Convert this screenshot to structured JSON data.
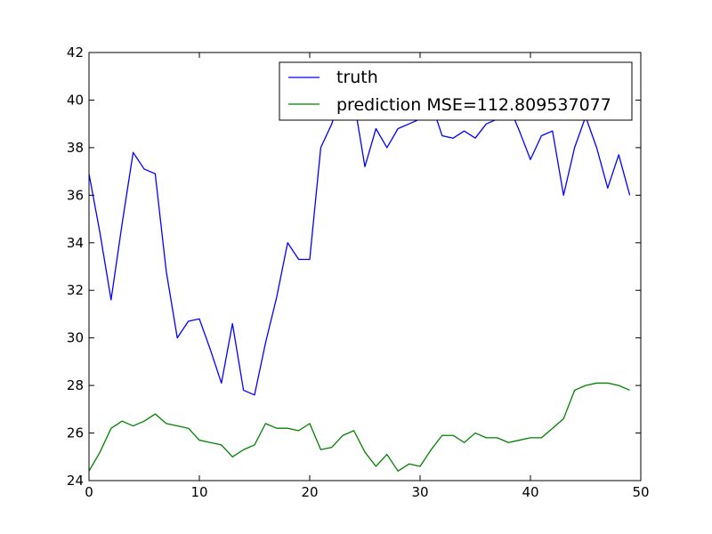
{
  "chart_data": {
    "type": "line",
    "title": "",
    "xlabel": "",
    "ylabel": "",
    "xlim": [
      0,
      50
    ],
    "ylim": [
      24,
      42
    ],
    "xticks": [
      0,
      10,
      20,
      30,
      40,
      50
    ],
    "yticks": [
      24,
      26,
      28,
      30,
      32,
      34,
      36,
      38,
      40,
      42
    ],
    "grid": false,
    "legend_position": "top-right",
    "x": [
      0,
      1,
      2,
      3,
      4,
      5,
      6,
      7,
      8,
      9,
      10,
      11,
      12,
      13,
      14,
      15,
      16,
      17,
      18,
      19,
      20,
      21,
      22,
      23,
      24,
      25,
      26,
      27,
      28,
      29,
      30,
      31,
      32,
      33,
      34,
      35,
      36,
      37,
      38,
      39,
      40,
      41,
      42,
      43,
      44,
      45,
      46,
      47,
      48,
      49
    ],
    "series": [
      {
        "name": "truth",
        "color": "#0000ff",
        "values": [
          36.9,
          34.4,
          31.6,
          34.8,
          37.8,
          37.1,
          36.9,
          32.8,
          30.0,
          30.7,
          30.8,
          29.5,
          28.1,
          30.6,
          27.8,
          27.6,
          29.8,
          31.7,
          34.0,
          33.3,
          33.3,
          38.0,
          39.0,
          40.5,
          40.0,
          37.2,
          38.8,
          38.0,
          38.8,
          39.0,
          39.2,
          39.9,
          38.5,
          38.4,
          38.7,
          38.4,
          39.0,
          39.2,
          39.8,
          38.7,
          37.5,
          38.5,
          38.7,
          36.0,
          38.0,
          39.3,
          38.0,
          36.3,
          37.7,
          36.0
        ]
      },
      {
        "name": "prediction MSE=112.809537077",
        "color": "#008000",
        "values": [
          24.4,
          25.2,
          26.2,
          26.5,
          26.3,
          26.5,
          26.8,
          26.4,
          26.3,
          26.2,
          25.7,
          25.6,
          25.5,
          25.0,
          25.3,
          25.5,
          26.4,
          26.2,
          26.2,
          26.1,
          26.4,
          25.3,
          25.4,
          25.9,
          26.1,
          25.2,
          24.6,
          25.1,
          24.4,
          24.7,
          24.6,
          25.3,
          25.9,
          25.9,
          25.6,
          26.0,
          25.8,
          25.8,
          25.6,
          25.7,
          25.8,
          25.8,
          26.2,
          26.6,
          27.8,
          28.0,
          28.1,
          28.1,
          28.0,
          27.8
        ]
      }
    ]
  }
}
